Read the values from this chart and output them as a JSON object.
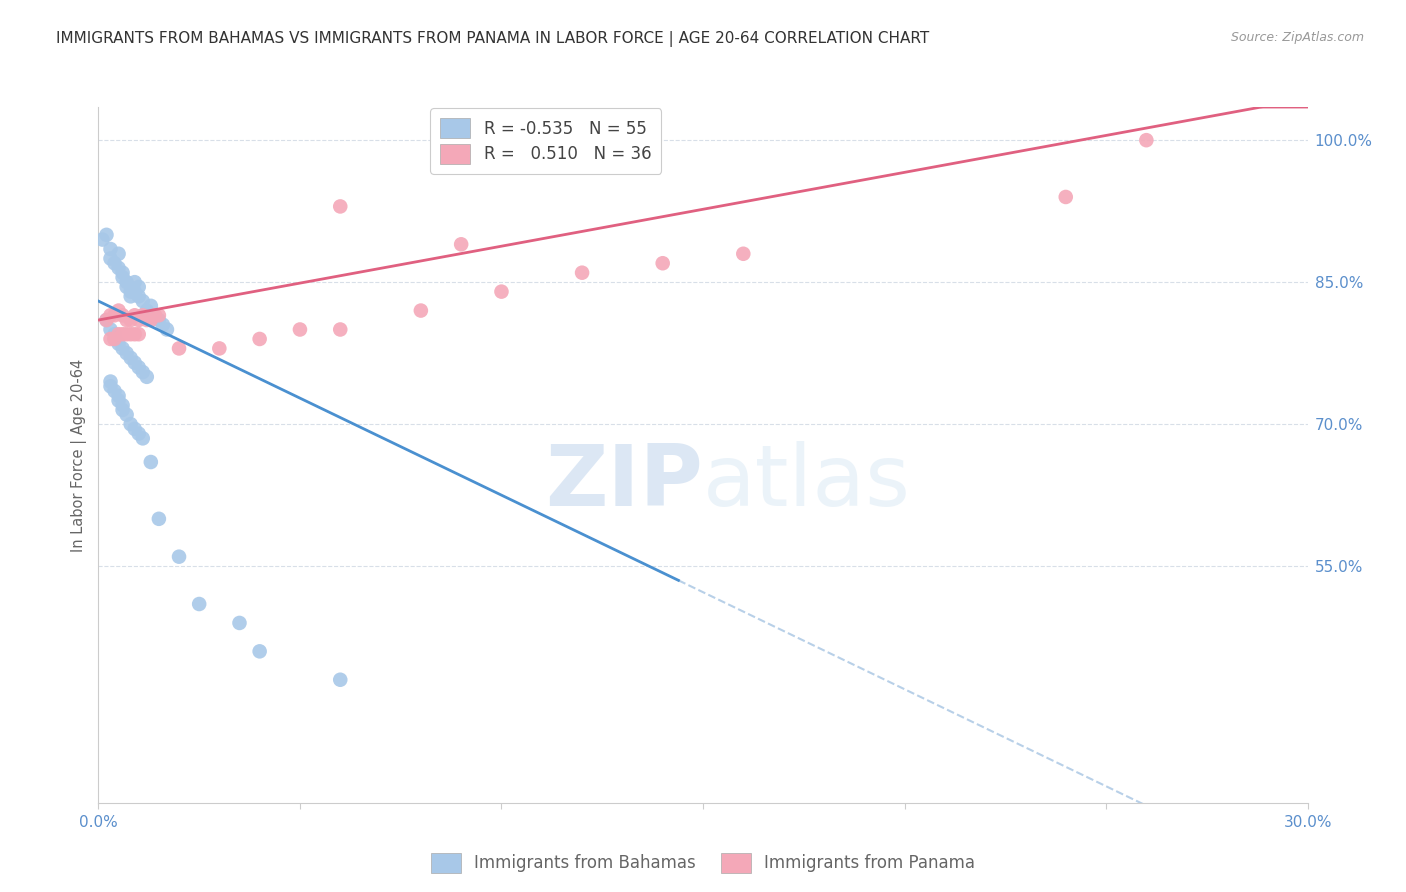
{
  "title": "IMMIGRANTS FROM BAHAMAS VS IMMIGRANTS FROM PANAMA IN LABOR FORCE | AGE 20-64 CORRELATION CHART",
  "source": "Source: ZipAtlas.com",
  "ylabel": "In Labor Force | Age 20-64",
  "xlim": [
    0.0,
    0.3
  ],
  "ylim": [
    0.3,
    1.035
  ],
  "xticks": [
    0.0,
    0.05,
    0.1,
    0.15,
    0.2,
    0.25,
    0.3
  ],
  "xticklabels": [
    "0.0%",
    "",
    "",
    "",
    "",
    "",
    "30.0%"
  ],
  "yticks_right": [
    0.55,
    0.7,
    0.85,
    1.0
  ],
  "ytick_right_labels": [
    "55.0%",
    "70.0%",
    "85.0%",
    "100.0%"
  ],
  "bahamas_color": "#a8c8e8",
  "panama_color": "#f4a8b8",
  "trend_bahamas_color": "#4a90d0",
  "trend_panama_color": "#e06080",
  "trend_dashed_color": "#b8d0e8",
  "watermark_zip": "ZIP",
  "watermark_atlas": "atlas",
  "legend_r_bahamas": "-0.535",
  "legend_n_bahamas": "55",
  "legend_r_panama": "0.510",
  "legend_n_panama": "36",
  "bahamas_x": [
    0.001,
    0.002,
    0.003,
    0.003,
    0.004,
    0.005,
    0.005,
    0.006,
    0.006,
    0.007,
    0.007,
    0.008,
    0.008,
    0.009,
    0.009,
    0.01,
    0.01,
    0.011,
    0.012,
    0.013,
    0.014,
    0.015,
    0.016,
    0.017,
    0.002,
    0.003,
    0.004,
    0.004,
    0.005,
    0.006,
    0.007,
    0.008,
    0.009,
    0.01,
    0.011,
    0.012,
    0.003,
    0.003,
    0.004,
    0.005,
    0.005,
    0.006,
    0.006,
    0.007,
    0.008,
    0.009,
    0.01,
    0.011,
    0.013,
    0.015,
    0.02,
    0.025,
    0.035,
    0.04,
    0.06
  ],
  "bahamas_y": [
    0.895,
    0.9,
    0.885,
    0.875,
    0.87,
    0.88,
    0.865,
    0.86,
    0.855,
    0.85,
    0.845,
    0.84,
    0.835,
    0.84,
    0.85,
    0.845,
    0.835,
    0.83,
    0.82,
    0.825,
    0.815,
    0.81,
    0.805,
    0.8,
    0.81,
    0.8,
    0.795,
    0.79,
    0.785,
    0.78,
    0.775,
    0.77,
    0.765,
    0.76,
    0.755,
    0.75,
    0.745,
    0.74,
    0.735,
    0.73,
    0.725,
    0.72,
    0.715,
    0.71,
    0.7,
    0.695,
    0.69,
    0.685,
    0.66,
    0.6,
    0.56,
    0.51,
    0.49,
    0.46,
    0.43
  ],
  "panama_x": [
    0.002,
    0.003,
    0.004,
    0.005,
    0.006,
    0.007,
    0.008,
    0.009,
    0.01,
    0.011,
    0.012,
    0.013,
    0.014,
    0.015,
    0.003,
    0.004,
    0.005,
    0.006,
    0.007,
    0.008,
    0.009,
    0.01,
    0.02,
    0.03,
    0.04,
    0.05,
    0.06,
    0.08,
    0.1,
    0.12,
    0.14,
    0.16,
    0.24,
    0.26,
    0.06,
    0.09
  ],
  "panama_y": [
    0.81,
    0.815,
    0.815,
    0.82,
    0.815,
    0.81,
    0.81,
    0.815,
    0.81,
    0.815,
    0.81,
    0.81,
    0.815,
    0.815,
    0.79,
    0.79,
    0.795,
    0.795,
    0.795,
    0.795,
    0.795,
    0.795,
    0.78,
    0.78,
    0.79,
    0.8,
    0.8,
    0.82,
    0.84,
    0.86,
    0.87,
    0.88,
    0.94,
    1.0,
    0.93,
    0.89
  ],
  "grid_color": "#d8dfe8",
  "axis_color": "#5b8fcc",
  "background_color": "#ffffff",
  "title_fontsize": 11,
  "label_fontsize": 10.5,
  "tick_fontsize": 11
}
